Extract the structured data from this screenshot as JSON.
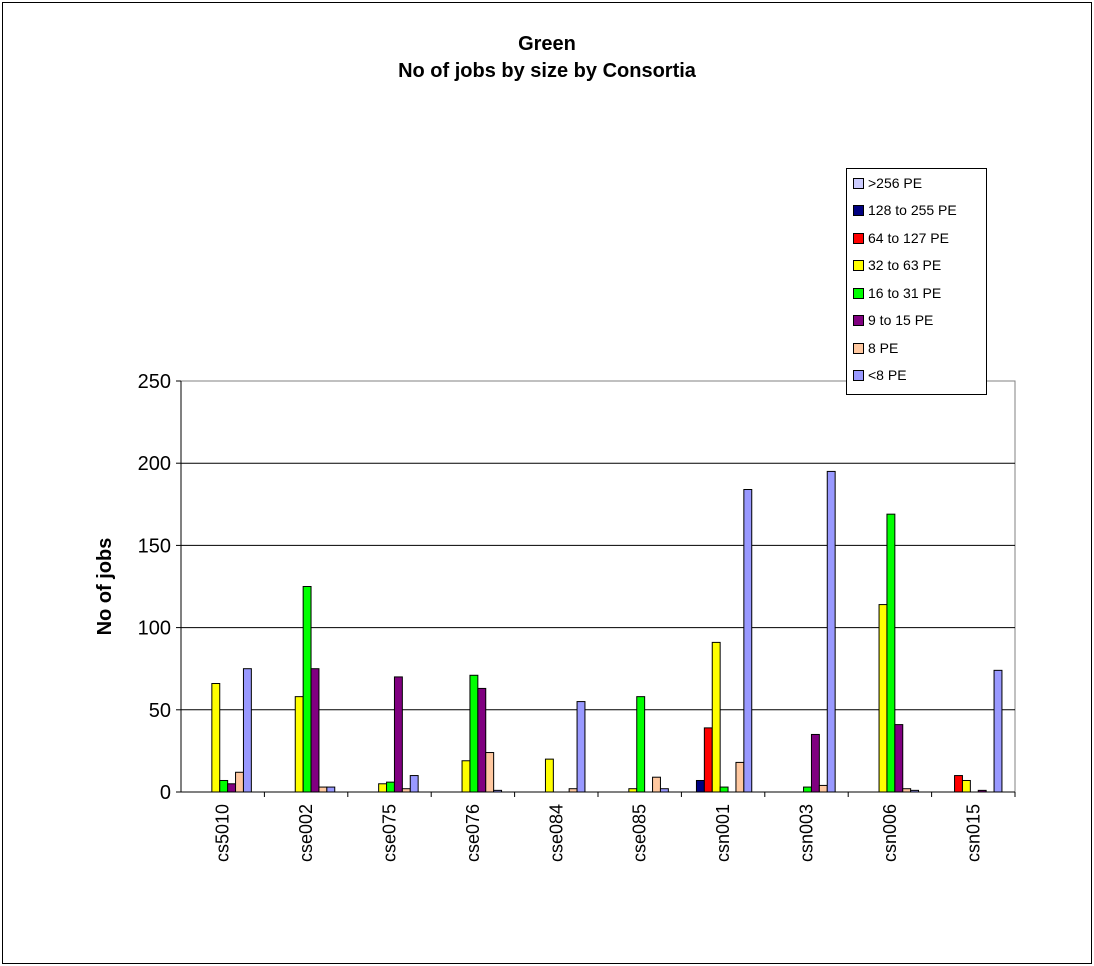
{
  "chart_data": {
    "type": "bar",
    "title": [
      "Green",
      "No of jobs by size by Consortia"
    ],
    "xlabel": "",
    "ylabel": "No of jobs",
    "ylim": [
      0,
      250
    ],
    "yticks": [
      0,
      50,
      100,
      150,
      200,
      250
    ],
    "grid": "horizontal",
    "legend_position": "top-right",
    "categories": [
      "cs5010",
      "cse002",
      "cse075",
      "cse076",
      "cse084",
      "cse085",
      "csn001",
      "csn003",
      "csn006",
      "csn015"
    ],
    "series": [
      {
        "name": "128 to 255 PE",
        "color": "#000080",
        "values": [
          0,
          0,
          0,
          0,
          0,
          0,
          7,
          0,
          0,
          0
        ]
      },
      {
        "name": "64 to 127 PE",
        "color": "#ff0000",
        "values": [
          0,
          0,
          0,
          0,
          0,
          0,
          39,
          0,
          0,
          10
        ]
      },
      {
        "name": "32 to 63 PE",
        "color": "#ffff00",
        "values": [
          66,
          58,
          5,
          19,
          20,
          2,
          91,
          0,
          114,
          7
        ]
      },
      {
        "name": "16 to 31 PE",
        "color": "#00ff00",
        "values": [
          7,
          125,
          6,
          71,
          0,
          58,
          3,
          3,
          169,
          0
        ]
      },
      {
        "name": "9 to 15 PE",
        "color": "#800080",
        "values": [
          5,
          75,
          70,
          63,
          0,
          0,
          0,
          35,
          41,
          1
        ]
      },
      {
        "name": "8 PE",
        "color": "#ffc8a0",
        "values": [
          12,
          3,
          2,
          24,
          2,
          9,
          18,
          4,
          2,
          0
        ]
      },
      {
        "name": "<8 PE",
        "color": "#9999ff",
        "values": [
          75,
          3,
          10,
          1,
          55,
          2,
          184,
          195,
          1,
          74
        ]
      }
    ],
    "legend": [
      {
        "label": ">256 PE",
        "color": "#ccccff"
      },
      {
        "label": "128 to 255 PE",
        "color": "#000080"
      },
      {
        "label": "64 to 127 PE",
        "color": "#ff0000"
      },
      {
        "label": "32 to 63 PE",
        "color": "#ffff00"
      },
      {
        "label": "16 to 31 PE",
        "color": "#00ff00"
      },
      {
        "label": "9 to 15 PE",
        "color": "#800080"
      },
      {
        "label": "8 PE",
        "color": "#ffc8a0"
      },
      {
        "label": "<8 PE",
        "color": "#9999ff"
      }
    ]
  }
}
